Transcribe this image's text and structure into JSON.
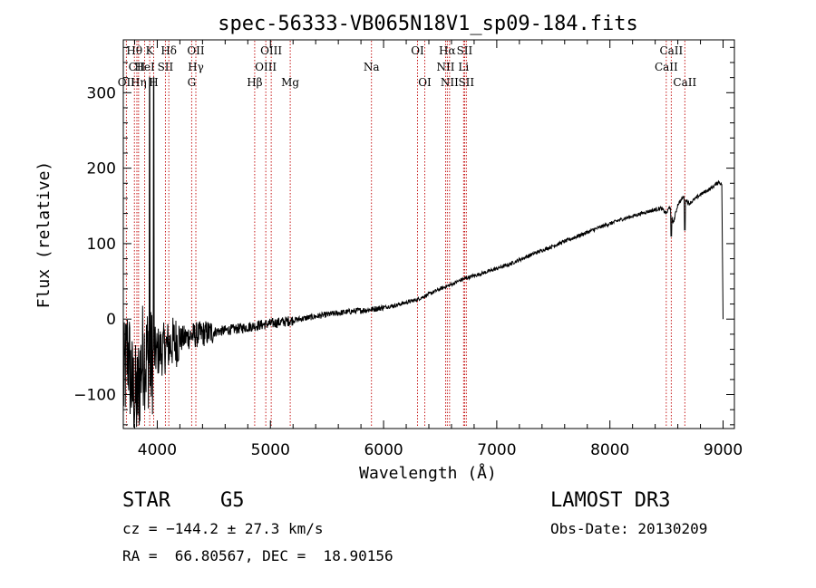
{
  "chart_data": {
    "type": "line",
    "title": "spec-56333-VB065N18V1_sp09-184.fits",
    "xlabel": "Wavelength (Å)",
    "ylabel": "Flux (relative)",
    "xlim": [
      3700,
      9100
    ],
    "ylim": [
      -145,
      370
    ],
    "xticks": [
      4000,
      5000,
      6000,
      7000,
      8000,
      9000
    ],
    "yticks": [
      -100,
      0,
      100,
      200,
      300
    ],
    "grid": false,
    "series": [
      {
        "name": "spectrum",
        "color": "#000000",
        "x": [
          3700,
          3740,
          3780,
          3820,
          3850,
          3880,
          3900,
          3920,
          3940,
          3980,
          4050,
          4150,
          4300,
          4500,
          4700,
          4900,
          5100,
          5300,
          5500,
          5700,
          5900,
          6100,
          6300,
          6500,
          6600,
          6700,
          6900,
          7100,
          7300,
          7500,
          7700,
          7900,
          8100,
          8300,
          8450,
          8500,
          8530,
          8560,
          8600,
          8650,
          8700,
          8800,
          8900,
          8960,
          8990,
          9000
        ],
        "y": [
          -90,
          -40,
          -95,
          -110,
          -70,
          -40,
          -55,
          -45,
          -60,
          -45,
          -40,
          -30,
          -22,
          -17,
          -13,
          -8,
          -4,
          1,
          6,
          10,
          13,
          18,
          26,
          40,
          46,
          53,
          62,
          72,
          85,
          97,
          109,
          121,
          132,
          141,
          147,
          140,
          150,
          127,
          152,
          162,
          153,
          165,
          174,
          182,
          178,
          0
        ]
      }
    ],
    "line_markers": [
      {
        "label": "Hθ",
        "wavelength": 3798,
        "row": 0
      },
      {
        "label": "K",
        "wavelength": 3933,
        "row": 0
      },
      {
        "label": "Hδ",
        "wavelength": 4102,
        "row": 0
      },
      {
        "label": "OII",
        "wavelength": 4341,
        "row": 0
      },
      {
        "label": "OIII",
        "wavelength": 5007,
        "row": 0
      },
      {
        "label": "OI",
        "wavelength": 6300,
        "row": 0
      },
      {
        "label": "Hα",
        "wavelength": 6563,
        "row": 0
      },
      {
        "label": "SII",
        "wavelength": 6716,
        "row": 0
      },
      {
        "label": "CaII",
        "wavelength": 8542,
        "row": 0
      },
      {
        "label": "CII",
        "wavelength": 3820,
        "row": 1
      },
      {
        "label": "HeI",
        "wavelength": 3889,
        "row": 1
      },
      {
        "label": "SII",
        "wavelength": 4072,
        "row": 1
      },
      {
        "label": "Hγ",
        "wavelength": 4341,
        "row": 1
      },
      {
        "label": "OIII",
        "wavelength": 4959,
        "row": 1
      },
      {
        "label": "Na",
        "wavelength": 5893,
        "row": 1
      },
      {
        "label": "NII",
        "wavelength": 6548,
        "row": 1
      },
      {
        "label": "Li",
        "wavelength": 6707,
        "row": 1
      },
      {
        "label": "CaII",
        "wavelength": 8498,
        "row": 1
      },
      {
        "label": "OII",
        "wavelength": 3727,
        "row": 2
      },
      {
        "label": "Hη",
        "wavelength": 3835,
        "row": 2
      },
      {
        "label": "H",
        "wavelength": 3968,
        "row": 2
      },
      {
        "label": "G",
        "wavelength": 4304,
        "row": 2
      },
      {
        "label": "Hβ",
        "wavelength": 4861,
        "row": 2
      },
      {
        "label": "Mg",
        "wavelength": 5175,
        "row": 2
      },
      {
        "label": "OI",
        "wavelength": 6364,
        "row": 2
      },
      {
        "label": "NII",
        "wavelength": 6583,
        "row": 2
      },
      {
        "label": "SII",
        "wavelength": 6731,
        "row": 2
      },
      {
        "label": "CaII",
        "wavelength": 8662,
        "row": 2
      }
    ]
  },
  "info": {
    "object_class": "STAR",
    "subclass": "G5",
    "survey": "LAMOST DR3",
    "redshift": "cz = −144.2 ± 27.3 km/s",
    "obs_date": "Obs-Date: 20130209",
    "coords": "RA =  66.80567, DEC =  18.90156"
  }
}
